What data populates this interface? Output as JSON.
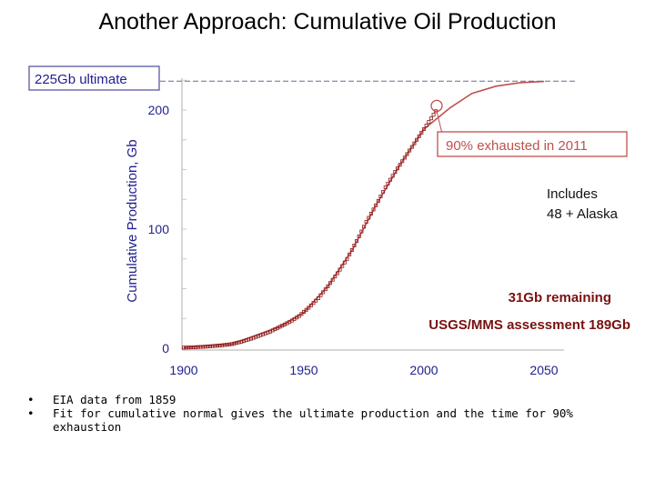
{
  "slide": {
    "title": "Another Approach: Cumulative Oil Production",
    "bullets": [
      "EIA data from 1859",
      "Fit for cumulative normal gives the ultimate production and the time for 90% exhaustion"
    ]
  },
  "chart_data": {
    "type": "line",
    "title": "",
    "xlabel": "",
    "ylabel": "Cumulative Production, Gb",
    "xlim": [
      1900,
      2050
    ],
    "ylim": [
      0,
      225
    ],
    "xticks": [
      1900,
      1950,
      2000,
      2050
    ],
    "yticks": [
      0,
      100,
      200
    ],
    "grid": false,
    "series": [
      {
        "kind": "data-points",
        "color": "#8b1a1a",
        "x": [
          1900,
          1904,
          1908,
          1912,
          1916,
          1920,
          1924,
          1928,
          1932,
          1936,
          1940,
          1944,
          1948,
          1952,
          1956,
          1960,
          1964,
          1968,
          1972,
          1976,
          1980,
          1984,
          1988,
          1992,
          1996,
          2000,
          2004,
          2005
        ],
        "y": [
          0.5,
          0.8,
          1.2,
          1.8,
          2.5,
          3.5,
          5.5,
          8,
          11,
          14,
          18,
          22,
          27,
          34,
          42,
          52,
          63,
          75,
          90,
          106,
          120,
          135,
          148,
          160,
          172,
          184,
          196,
          199
        ]
      },
      {
        "kind": "fit",
        "color": "#c0504d",
        "x": [
          1900,
          1920,
          1940,
          1950,
          1960,
          1970,
          1980,
          1990,
          2000,
          2011,
          2020,
          2030,
          2040,
          2050
        ],
        "y": [
          0.5,
          3.5,
          18,
          30,
          52,
          82,
          120,
          154,
          184,
          202,
          214,
          220,
          223,
          224
        ]
      }
    ],
    "ultimate": {
      "value": 225,
      "label": "225Gb ultimate"
    },
    "annotations": {
      "exhausted": {
        "x": 2011,
        "y": 202,
        "label": "90% exhausted in 2011"
      },
      "includes": "Includes\n48 + Alaska",
      "remaining": "31Gb remaining",
      "usgs": "USGS/MMS  assessment 189Gb"
    },
    "colors": {
      "axis": "#c8c8c8",
      "tick_text": "#1f1f8f",
      "ultimate": "#1f1f8f",
      "note_red": "#c0504d",
      "note_dark": "#7a1010"
    }
  }
}
